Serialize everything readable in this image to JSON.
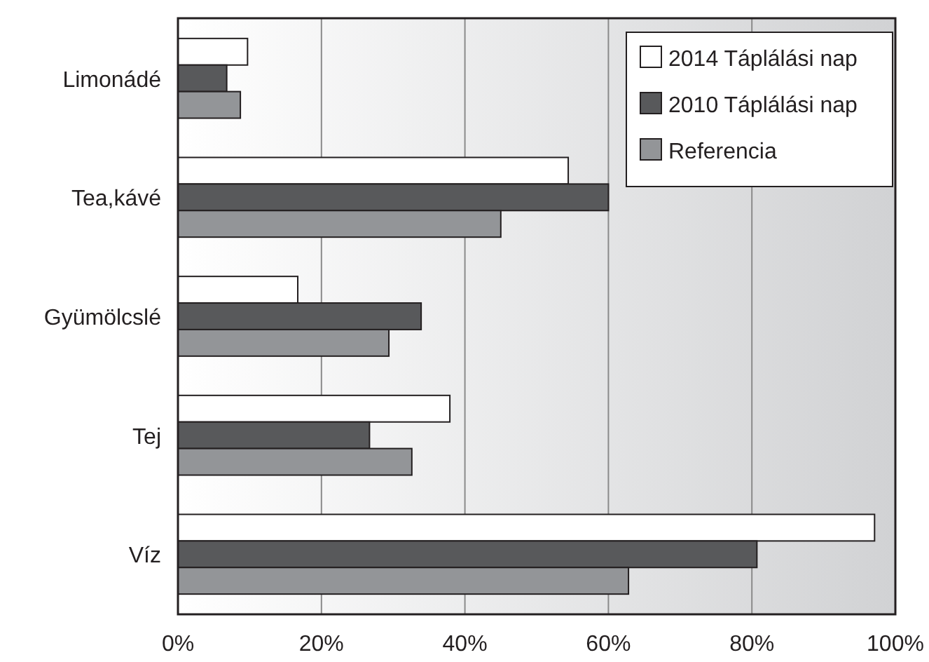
{
  "chart_data": {
    "type": "bar",
    "orientation": "horizontal",
    "categories": [
      "Limonádé",
      "Tea,kávé",
      "Gyümölcslé",
      "Tej",
      "Víz"
    ],
    "series": [
      {
        "name": "2014 Táplálási nap",
        "color": "#ffffff",
        "values": [
          9.7,
          54.4,
          16.7,
          37.9,
          97.1
        ]
      },
      {
        "name": "2010 Táplálási nap",
        "color": "#58595b",
        "values": [
          6.8,
          60.0,
          33.9,
          26.7,
          80.7
        ]
      },
      {
        "name": "Referencia",
        "color": "#939598",
        "values": [
          8.7,
          45.0,
          29.4,
          32.6,
          62.8
        ]
      }
    ],
    "xlim": [
      0,
      100
    ],
    "xticks": [
      {
        "value": 0,
        "label": "0%"
      },
      {
        "value": 20,
        "label": "20%"
      },
      {
        "value": 40,
        "label": "40%"
      },
      {
        "value": 60,
        "label": "60%"
      },
      {
        "value": 80,
        "label": "80%"
      },
      {
        "value": 100,
        "label": "100%"
      }
    ],
    "grid": "x",
    "legend": "top right"
  }
}
